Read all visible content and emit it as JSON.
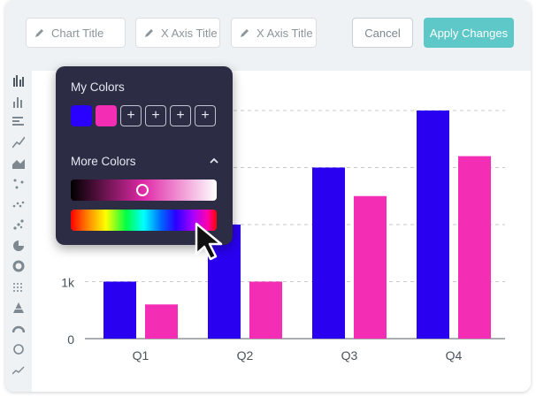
{
  "toolbar": {
    "chart_title_placeholder": "Chart Title",
    "x_axis_title_placeholder": "X Axis Title",
    "x_axis_title2_placeholder": "X Axis Title",
    "cancel_label": "Cancel",
    "apply_label": "Apply Changes",
    "apply_color": "#5ec8c8"
  },
  "sidebar": {
    "icons": [
      "grouped-bar-icon",
      "column-icon",
      "horizontal-bar-icon",
      "line-icon",
      "area-icon",
      "scatter-icon",
      "dot-scatter-icon",
      "bubble-icon",
      "pie-icon",
      "donut-icon",
      "dot-matrix-icon",
      "pyramid-icon",
      "gauge-icon",
      "circle-icon",
      "sparkline-icon"
    ]
  },
  "color_picker": {
    "my_colors_label": "My Colors",
    "more_colors_label": "More Colors",
    "swatches": [
      "#2a00ff",
      "#f42db5"
    ],
    "add_slots": 4,
    "shade_selected": 0.5
  },
  "chart_data": {
    "type": "bar",
    "categories": [
      "Q1",
      "Q2",
      "Q3",
      "Q4"
    ],
    "series": [
      {
        "values": [
          1000,
          2000,
          3000,
          4000
        ],
        "color": "#2a00f0"
      },
      {
        "values": [
          600,
          1000,
          2500,
          3200
        ],
        "color": "#f42db5"
      }
    ],
    "ylim": [
      0,
      4000
    ],
    "tick_labels": [
      {
        "value": 0,
        "label": "0"
      },
      {
        "value": 1000,
        "label": "1k"
      }
    ],
    "grid": true
  }
}
